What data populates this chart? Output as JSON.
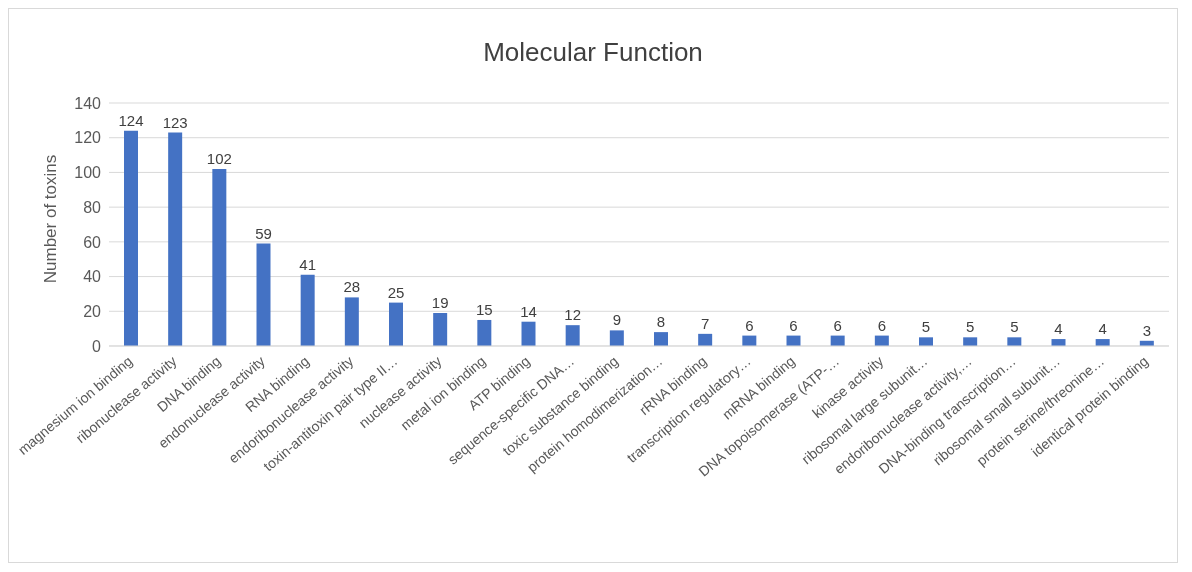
{
  "chart_data": {
    "type": "bar",
    "title": "Molecular Function",
    "ylabel": "Number of toxins",
    "categories": [
      "magnesium ion binding",
      "ribonuclease activity",
      "DNA binding",
      "endonuclease activity",
      "RNA binding",
      "endoribonuclease activity",
      "toxin-antitoxin pair type II…",
      "nuclease activity",
      "metal ion binding",
      "ATP binding",
      "sequence-specific DNA…",
      "toxic substance binding",
      "protein homodimerization…",
      "rRNA binding",
      "transcription regulatory…",
      "mRNA binding",
      "DNA topoisomerase (ATP-…",
      "kinase activity",
      "ribosomal large subunit…",
      "endoribonuclease activity,…",
      "DNA-binding transcription…",
      "ribosomal small subunit…",
      "protein serine/threonine…",
      "identical protein binding"
    ],
    "values": [
      124,
      123,
      102,
      59,
      41,
      28,
      25,
      19,
      15,
      14,
      12,
      9,
      8,
      7,
      6,
      6,
      6,
      6,
      5,
      5,
      5,
      4,
      4,
      3
    ],
    "color": "#4472c4",
    "ylim": [
      0,
      140
    ],
    "yticks": [
      0,
      20,
      40,
      60,
      80,
      100,
      120,
      140
    ],
    "grid": "y",
    "data_labels": true,
    "legend": false
  }
}
